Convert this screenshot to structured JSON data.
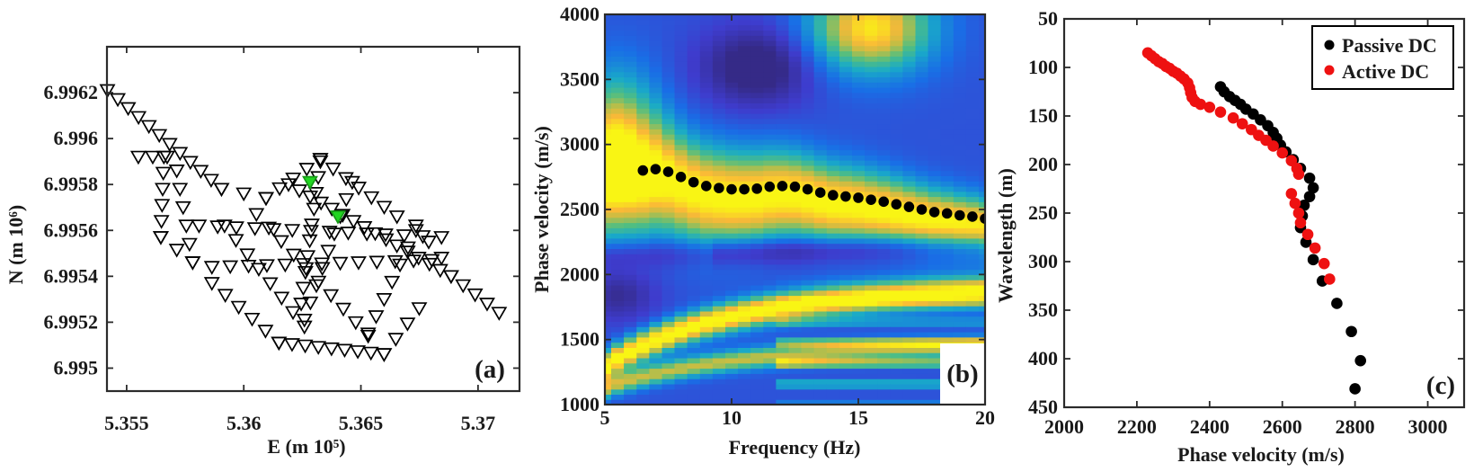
{
  "chart_data": [
    {
      "type": "scatter",
      "panel_label": "(a)",
      "xlabel": "E (m 10⁵)",
      "ylabel": "N (m 10⁶)",
      "xlim": [
        5.35416,
        5.37177
      ],
      "ylim": [
        6.9949,
        6.9964
      ],
      "xticks": [
        {
          "value": 5.355,
          "label": "5.355"
        },
        {
          "value": 5.36,
          "label": "5.36"
        },
        {
          "value": 5.365,
          "label": "5.365"
        },
        {
          "value": 5.37,
          "label": "5.37"
        }
      ],
      "yticks": [
        {
          "value": 6.995,
          "label": "6.995"
        },
        {
          "value": 6.9952,
          "label": "6.9952"
        },
        {
          "value": 6.9954,
          "label": "6.9954"
        },
        {
          "value": 6.9956,
          "label": "6.9956"
        },
        {
          "value": 6.9958,
          "label": "6.9958"
        },
        {
          "value": 6.996,
          "label": "6.996"
        },
        {
          "value": 6.9962,
          "label": "6.9962"
        }
      ],
      "marker": "inverted-triangle",
      "station_color": "#000000",
      "highlight_color": "#22d622",
      "station_lines": [
        {
          "from": [
            5.35418,
            6.99621
          ],
          "to": [
            5.35905,
            6.99578
          ],
          "n": 12
        },
        {
          "from": [
            5.35905,
            6.99578
          ],
          "to": [
            5.36095,
            6.99574
          ],
          "n": 3
        },
        {
          "from": [
            5.36095,
            6.99574
          ],
          "to": [
            5.36327,
            6.99591
          ],
          "n": 5
        },
        {
          "from": [
            5.36327,
            6.99591
          ],
          "to": [
            5.36654,
            6.99566
          ],
          "n": 7
        },
        {
          "from": [
            5.36735,
            6.99562
          ],
          "to": [
            5.36844,
            6.99548
          ],
          "n": 3
        },
        {
          "from": [
            5.36191,
            6.9958
          ],
          "to": [
            5.36885,
            6.9954
          ],
          "n": 16
        },
        {
          "from": [
            5.36885,
            6.9954
          ],
          "to": [
            5.3709,
            6.99524
          ],
          "n": 5
        },
        {
          "from": [
            5.3555,
            6.99592
          ],
          "to": [
            5.35673,
            6.99592
          ],
          "n": 3
        },
        {
          "from": [
            5.35659,
            6.99592
          ],
          "to": [
            5.35646,
            6.99557
          ],
          "n": 6
        },
        {
          "from": [
            5.35646,
            6.99557
          ],
          "to": [
            5.35782,
            6.99546
          ],
          "n": 3
        },
        {
          "from": [
            5.35714,
            6.99586
          ],
          "to": [
            5.35782,
            6.99546
          ],
          "n": 6
        },
        {
          "from": [
            5.35864,
            6.99537
          ],
          "to": [
            5.3615,
            6.99511
          ],
          "n": 6
        },
        {
          "from": [
            5.3615,
            6.99511
          ],
          "to": [
            5.36599,
            6.99506
          ],
          "n": 9
        },
        {
          "from": [
            5.36599,
            6.99506
          ],
          "to": [
            5.36749,
            6.99526
          ],
          "n": 4
        },
        {
          "from": [
            5.35918,
            6.99562
          ],
          "to": [
            5.36259,
            6.99518
          ],
          "n": 8
        },
        {
          "from": [
            5.36054,
            6.99567
          ],
          "to": [
            5.36531,
            6.99514
          ],
          "n": 10
        },
        {
          "from": [
            5.36327,
            6.9959
          ],
          "to": [
            5.36245,
            6.99528
          ],
          "n": 10
        },
        {
          "from": [
            5.36463,
            6.99581
          ],
          "to": [
            5.36259,
            6.99521
          ],
          "n": 9
        },
        {
          "from": [
            5.36735,
            6.9956
          ],
          "to": [
            5.36531,
            6.99515
          ],
          "n": 7
        },
        {
          "from": [
            5.35809,
            6.99562
          ],
          "to": [
            5.36844,
            6.99557
          ],
          "n": 14
        },
        {
          "from": [
            5.35864,
            6.99544
          ],
          "to": [
            5.36803,
            6.99547
          ],
          "n": 13
        }
      ],
      "highlighted_stations": [
        [
          5.36283,
          6.99581
        ],
        [
          5.36402,
          6.99566
        ]
      ]
    },
    {
      "type": "heatmap",
      "panel_label": "(b)",
      "xlabel": "Frequency (Hz)",
      "ylabel": "Phase velocity (m/s)",
      "xlim": [
        5,
        20
      ],
      "ylim": [
        1000,
        4000
      ],
      "xticks": [
        {
          "value": 5,
          "label": "5"
        },
        {
          "value": 10,
          "label": "10"
        },
        {
          "value": 15,
          "label": "15"
        },
        {
          "value": 20,
          "label": "20"
        }
      ],
      "yticks": [
        {
          "value": 1000,
          "label": "1000"
        },
        {
          "value": 1500,
          "label": "1500"
        },
        {
          "value": 2000,
          "label": "2000"
        },
        {
          "value": 2500,
          "label": "2500"
        },
        {
          "value": 3000,
          "label": "3000"
        },
        {
          "value": 3500,
          "label": "3500"
        },
        {
          "value": 4000,
          "label": "4000"
        }
      ],
      "colormap": "parula",
      "picks": {
        "color": "#000000",
        "frequency": [
          6.5,
          7,
          7.5,
          8,
          8.5,
          9,
          9.5,
          10,
          10.5,
          11,
          11.5,
          12,
          12.5,
          13,
          13.5,
          14,
          14.5,
          15,
          15.5,
          16,
          16.5,
          17,
          17.5,
          18,
          18.5,
          19,
          19.5,
          20
        ],
        "velocity": [
          2800,
          2810,
          2790,
          2750,
          2710,
          2680,
          2665,
          2655,
          2655,
          2660,
          2675,
          2680,
          2675,
          2655,
          2630,
          2610,
          2600,
          2590,
          2575,
          2560,
          2540,
          2520,
          2500,
          2480,
          2470,
          2455,
          2445,
          2430
        ]
      }
    },
    {
      "type": "scatter",
      "panel_label": "(c)",
      "xlabel": "Phase velocity (m/s)",
      "ylabel": "Wavelength (m)",
      "xlim": [
        2000,
        3100
      ],
      "ylim": [
        50,
        450
      ],
      "y_reversed": true,
      "legend_position": "top-right",
      "xticks": [
        {
          "value": 2000,
          "label": "2000"
        },
        {
          "value": 2200,
          "label": "2200"
        },
        {
          "value": 2400,
          "label": "2400"
        },
        {
          "value": 2600,
          "label": "2600"
        },
        {
          "value": 2800,
          "label": "2800"
        },
        {
          "value": 3000,
          "label": "3000"
        }
      ],
      "yticks": [
        {
          "value": 50,
          "label": "50"
        },
        {
          "value": 100,
          "label": "100"
        },
        {
          "value": 150,
          "label": "150"
        },
        {
          "value": 200,
          "label": "200"
        },
        {
          "value": 250,
          "label": "250"
        },
        {
          "value": 300,
          "label": "300"
        },
        {
          "value": 350,
          "label": "350"
        },
        {
          "value": 400,
          "label": "400"
        },
        {
          "value": 450,
          "label": "450"
        }
      ],
      "series": [
        {
          "name": "Passive DC",
          "color": "#000000",
          "points": [
            [
              2430,
              120
            ],
            [
              2440,
              125
            ],
            [
              2455,
              130
            ],
            [
              2470,
              134
            ],
            [
              2485,
              138
            ],
            [
              2500,
              143
            ],
            [
              2520,
              148
            ],
            [
              2540,
              154
            ],
            [
              2560,
              160
            ],
            [
              2575,
              167
            ],
            [
              2585,
              173
            ],
            [
              2595,
              180
            ],
            [
              2610,
              187
            ],
            [
              2630,
              195
            ],
            [
              2650,
              204
            ],
            [
              2675,
              214
            ],
            [
              2685,
              224
            ],
            [
              2675,
              233
            ],
            [
              2660,
              242
            ],
            [
              2655,
              253
            ],
            [
              2650,
              265
            ],
            [
              2665,
              280
            ],
            [
              2685,
              298
            ],
            [
              2710,
              320
            ],
            [
              2750,
              343
            ],
            [
              2790,
              372
            ],
            [
              2815,
              402
            ],
            [
              2800,
              431
            ]
          ]
        },
        {
          "name": "Active DC",
          "color": "#ee1111",
          "points": [
            [
              2230,
              85
            ],
            [
              2240,
              88
            ],
            [
              2250,
              91
            ],
            [
              2260,
              94
            ],
            [
              2270,
              96
            ],
            [
              2280,
              99
            ],
            [
              2290,
              101
            ],
            [
              2300,
              104
            ],
            [
              2310,
              106
            ],
            [
              2320,
              109
            ],
            [
              2330,
              112
            ],
            [
              2340,
              116
            ],
            [
              2345,
              121
            ],
            [
              2348,
              126
            ],
            [
              2352,
              131
            ],
            [
              2360,
              135
            ],
            [
              2375,
              138
            ],
            [
              2400,
              141
            ],
            [
              2430,
              146
            ],
            [
              2465,
              152
            ],
            [
              2490,
              158
            ],
            [
              2515,
              164
            ],
            [
              2535,
              170
            ],
            [
              2555,
              175
            ],
            [
              2575,
              181
            ],
            [
              2600,
              188
            ],
            [
              2625,
              196
            ],
            [
              2640,
              204
            ],
            [
              2645,
              210
            ],
            [
              2625,
              230
            ],
            [
              2635,
              240
            ],
            [
              2645,
              250
            ],
            [
              2650,
              260
            ],
            [
              2670,
              272
            ],
            [
              2690,
              286
            ],
            [
              2715,
              302
            ],
            [
              2730,
              318
            ]
          ]
        }
      ]
    }
  ]
}
